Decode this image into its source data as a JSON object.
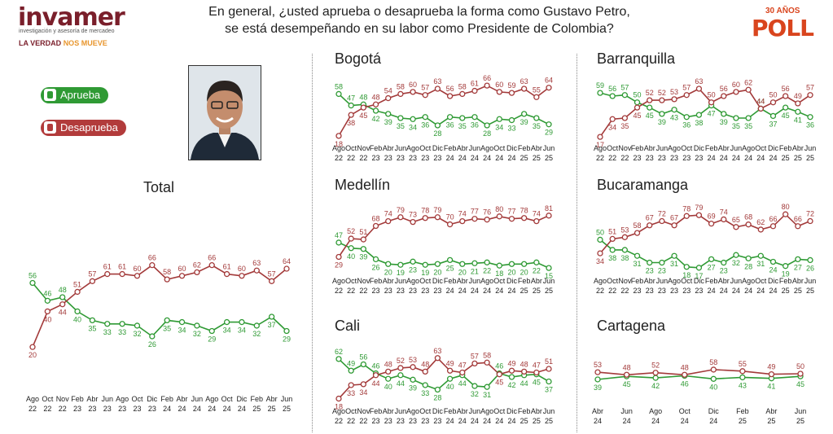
{
  "header": {
    "logo": "invamer",
    "logo_subtitle": "investigación y asesoría de mercadeo",
    "logo_tagline_a": "LA VERDAD",
    "logo_tagline_b": "NOS MUEVE",
    "question_line1": "En general, ¿usted aprueba o desaprueba la forma como Gustavo Petro,",
    "question_line2": "se está desempeñando en su labor como Presidente de Colombia?",
    "poll_years": "30 AÑOS",
    "poll_word": "POLL"
  },
  "legend": {
    "approve": "Aprueba",
    "disapprove": "Desaprueba"
  },
  "colors": {
    "approve": "#2f9a34",
    "disapprove": "#a33a3a"
  },
  "icons": [
    "thumbs-up-icon",
    "thumbs-down-icon"
  ],
  "chart_data": [
    {
      "title": "Total",
      "type": "line",
      "ylim": [
        10,
        75
      ],
      "xticks": [
        [
          "Ago",
          "22"
        ],
        [
          "Oct",
          "22"
        ],
        [
          "Nov",
          "22"
        ],
        [
          "Feb",
          "23"
        ],
        [
          "Abr",
          "23"
        ],
        [
          "Jun",
          "23"
        ],
        [
          "Ago",
          "23"
        ],
        [
          "Oct",
          "23"
        ],
        [
          "Dic",
          "23"
        ],
        [
          "Feb",
          "24"
        ],
        [
          "Abr",
          "24"
        ],
        [
          "Jun",
          "24"
        ],
        [
          "Ago",
          "24"
        ],
        [
          "Oct",
          "24"
        ],
        [
          "Dic",
          "24"
        ],
        [
          "Feb",
          "25"
        ],
        [
          "Abr",
          "25"
        ],
        [
          "Jun",
          "25"
        ]
      ],
      "series": [
        {
          "name": "Aprueba",
          "values": [
            56,
            46,
            48,
            40,
            35,
            33,
            33,
            32,
            26,
            35,
            34,
            32,
            29,
            34,
            34,
            32,
            37,
            29
          ]
        },
        {
          "name": "Desaprueba",
          "values": [
            20,
            40,
            44,
            51,
            57,
            61,
            61,
            60,
            66,
            58,
            60,
            62,
            66,
            61,
            60,
            63,
            57,
            64
          ]
        }
      ]
    },
    {
      "title": "Bogotá",
      "type": "line",
      "ylim": [
        14,
        70
      ],
      "xticks": [
        [
          "Ago",
          "22"
        ],
        [
          "Oct",
          "22"
        ],
        [
          "Nov",
          "22"
        ],
        [
          "Feb",
          "23"
        ],
        [
          "Abr",
          "23"
        ],
        [
          "Jun",
          "23"
        ],
        [
          "Ago",
          "23"
        ],
        [
          "Oct",
          "23"
        ],
        [
          "Dic",
          "23"
        ],
        [
          "Feb",
          "24"
        ],
        [
          "Abr",
          "24"
        ],
        [
          "Jun",
          "24"
        ],
        [
          "Ago",
          "24"
        ],
        [
          "Oct",
          "24"
        ],
        [
          "Dic",
          "24"
        ],
        [
          "Feb",
          "25"
        ],
        [
          "Abr",
          "25"
        ],
        [
          "Jun",
          "25"
        ]
      ],
      "series": [
        {
          "name": "Aprueba",
          "values": [
            58,
            47,
            48,
            42,
            39,
            35,
            34,
            36,
            28,
            36,
            35,
            36,
            28,
            34,
            33,
            39,
            35,
            29
          ]
        },
        {
          "name": "Desaprueba",
          "values": [
            18,
            38,
            45,
            48,
            54,
            58,
            60,
            57,
            63,
            56,
            58,
            61,
            66,
            60,
            59,
            63,
            55,
            64
          ]
        }
      ]
    },
    {
      "title": "Barranquilla",
      "type": "line",
      "ylim": [
        14,
        70
      ],
      "xticks": [
        [
          "Ago",
          "22"
        ],
        [
          "Oct",
          "22"
        ],
        [
          "Nov",
          "22"
        ],
        [
          "Feb",
          "23"
        ],
        [
          "Abr",
          "23"
        ],
        [
          "Jun",
          "23"
        ],
        [
          "Ago",
          "23"
        ],
        [
          "Oct",
          "23"
        ],
        [
          "Dic",
          "23"
        ],
        [
          "Feb",
          "24"
        ],
        [
          "Abr",
          "24"
        ],
        [
          "Jun",
          "24"
        ],
        [
          "Ago",
          "24"
        ],
        [
          "Oct",
          "24"
        ],
        [
          "Dic",
          "24"
        ],
        [
          "Feb",
          "25"
        ],
        [
          "Abr",
          "25"
        ],
        [
          "Jun",
          "25"
        ]
      ],
      "series": [
        {
          "name": "Aprueba",
          "values": [
            59,
            56,
            57,
            50,
            45,
            39,
            43,
            36,
            38,
            47,
            39,
            35,
            35,
            44,
            37,
            45,
            41,
            36
          ]
        },
        {
          "name": "Desaprueba",
          "values": [
            17,
            34,
            35,
            45,
            52,
            52,
            53,
            57,
            63,
            50,
            56,
            60,
            62,
            44,
            50,
            56,
            49,
            57
          ]
        }
      ]
    },
    {
      "title": "Medellín",
      "type": "line",
      "ylim": [
        10,
        88
      ],
      "xticks": [
        [
          "Ago",
          "22"
        ],
        [
          "Oct",
          "22"
        ],
        [
          "Nov",
          "22"
        ],
        [
          "Feb",
          "23"
        ],
        [
          "Abr",
          "23"
        ],
        [
          "Jun",
          "23"
        ],
        [
          "Ago",
          "23"
        ],
        [
          "Oct",
          "23"
        ],
        [
          "Dic",
          "23"
        ],
        [
          "Feb",
          "24"
        ],
        [
          "Abr",
          "24"
        ],
        [
          "Jun",
          "24"
        ],
        [
          "Ago",
          "24"
        ],
        [
          "Oct",
          "24"
        ],
        [
          "Dic",
          "24"
        ],
        [
          "Feb",
          "25"
        ],
        [
          "Abr",
          "25"
        ],
        [
          "Jun",
          "25"
        ]
      ],
      "series": [
        {
          "name": "Aprueba",
          "values": [
            47,
            40,
            39,
            26,
            20,
            19,
            23,
            19,
            20,
            25,
            20,
            21,
            22,
            18,
            20,
            20,
            22,
            15
          ]
        },
        {
          "name": "Desaprueba",
          "values": [
            29,
            52,
            51,
            68,
            74,
            79,
            73,
            78,
            79,
            70,
            74,
            77,
            76,
            80,
            77,
            78,
            74,
            81
          ]
        }
      ]
    },
    {
      "title": "Bucaramanga",
      "type": "line",
      "ylim": [
        12,
        85
      ],
      "xticks": [
        [
          "Ago",
          "22"
        ],
        [
          "Oct",
          "22"
        ],
        [
          "Nov",
          "22"
        ],
        [
          "Feb",
          "23"
        ],
        [
          "Abr",
          "23"
        ],
        [
          "Jun",
          "23"
        ],
        [
          "Ago",
          "23"
        ],
        [
          "Oct",
          "23"
        ],
        [
          "Dic",
          "23"
        ],
        [
          "Feb",
          "24"
        ],
        [
          "Abr",
          "24"
        ],
        [
          "Jun",
          "24"
        ],
        [
          "Ago",
          "24"
        ],
        [
          "Oct",
          "24"
        ],
        [
          "Dic",
          "24"
        ],
        [
          "Feb",
          "25"
        ],
        [
          "Abr",
          "25"
        ],
        [
          "Jun",
          "25"
        ]
      ],
      "series": [
        {
          "name": "Aprueba",
          "values": [
            50,
            38,
            38,
            31,
            23,
            23,
            31,
            18,
            17,
            27,
            23,
            32,
            28,
            31,
            24,
            19,
            27,
            26
          ]
        },
        {
          "name": "Desaprueba",
          "values": [
            34,
            51,
            53,
            58,
            67,
            72,
            67,
            78,
            79,
            69,
            74,
            65,
            68,
            62,
            66,
            80,
            66,
            72
          ]
        }
      ]
    },
    {
      "title": "Cali",
      "type": "line",
      "ylim": [
        14,
        70
      ],
      "xticks": [
        [
          "Ago",
          "22"
        ],
        [
          "Oct",
          "22"
        ],
        [
          "Nov",
          "22"
        ],
        [
          "Feb",
          "23"
        ],
        [
          "Abr",
          "23"
        ],
        [
          "Jun",
          "23"
        ],
        [
          "Ago",
          "23"
        ],
        [
          "Oct",
          "23"
        ],
        [
          "Dic",
          "23"
        ],
        [
          "Feb",
          "24"
        ],
        [
          "Abr",
          "24"
        ],
        [
          "Jun",
          "24"
        ],
        [
          "Ago",
          "24"
        ],
        [
          "Oct",
          "24"
        ],
        [
          "Dic",
          "24"
        ],
        [
          "Feb",
          "25"
        ],
        [
          "Abr",
          "25"
        ],
        [
          "Jun",
          "25"
        ]
      ],
      "series": [
        {
          "name": "Aprueba",
          "values": [
            62,
            49,
            56,
            46,
            40,
            44,
            39,
            33,
            28,
            40,
            44,
            32,
            31,
            46,
            42,
            44,
            45,
            37
          ]
        },
        {
          "name": "Desaprueba",
          "values": [
            18,
            33,
            34,
            44,
            48,
            52,
            53,
            48,
            63,
            49,
            47,
            57,
            58,
            45,
            49,
            48,
            47,
            51
          ]
        }
      ]
    },
    {
      "title": "Cartagena",
      "type": "line",
      "ylim": [
        20,
        80
      ],
      "xticks": [
        [
          "Abr",
          "24"
        ],
        [
          "Jun",
          "24"
        ],
        [
          "Ago",
          "24"
        ],
        [
          "Oct",
          "24"
        ],
        [
          "Dic",
          "24"
        ],
        [
          "Feb",
          "25"
        ],
        [
          "Abr",
          "25"
        ],
        [
          "Jun",
          "25"
        ]
      ],
      "series": [
        {
          "name": "Aprueba",
          "values": [
            39,
            45,
            42,
            46,
            40,
            43,
            41,
            45
          ]
        },
        {
          "name": "Desaprueba",
          "values": [
            53,
            48,
            52,
            48,
            58,
            55,
            49,
            50
          ]
        }
      ]
    }
  ]
}
